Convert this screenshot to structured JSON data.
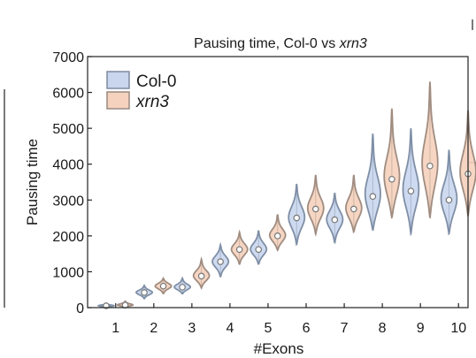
{
  "chart_data": {
    "type": "violin",
    "title": "Pausing time, Col-0 vs ",
    "title_italic": "xrn3",
    "xlabel": "#Exons",
    "ylabel": "Pausing time",
    "ylim": [
      0,
      7000
    ],
    "yticks": [
      0,
      1000,
      2000,
      3000,
      4000,
      5000,
      6000,
      7000
    ],
    "ytick_labels": [
      "0",
      "1000",
      "2000",
      "3000",
      "4000",
      "5000",
      "6000",
      "7000"
    ],
    "categories": [
      "1",
      "2",
      "3",
      "4",
      "5",
      "6",
      "7",
      "8",
      "9",
      "10"
    ],
    "legend_position": "top-left",
    "series": [
      {
        "name": "Col-0",
        "fill": "#c9d6ee",
        "edge": "#7f8fa6",
        "violins": [
          {
            "min": 10,
            "max": 120,
            "median": 50
          },
          {
            "min": 250,
            "max": 620,
            "median": 420
          },
          {
            "min": 380,
            "max": 820,
            "median": 570
          },
          {
            "min": 850,
            "max": 1750,
            "median": 1280
          },
          {
            "min": 1200,
            "max": 2150,
            "median": 1620
          },
          {
            "min": 1750,
            "max": 3450,
            "median": 2500
          },
          {
            "min": 1800,
            "max": 3200,
            "median": 2450
          },
          {
            "min": 2150,
            "max": 4850,
            "median": 3100
          },
          {
            "min": 2050,
            "max": 5000,
            "median": 3250
          },
          {
            "min": 2050,
            "max": 4400,
            "median": 3000
          }
        ]
      },
      {
        "name": "xrn3",
        "fill": "#f5d2bd",
        "edge": "#a08c80",
        "violins": [
          {
            "min": 10,
            "max": 180,
            "median": 70
          },
          {
            "min": 380,
            "max": 820,
            "median": 600
          },
          {
            "min": 550,
            "max": 1350,
            "median": 880
          },
          {
            "min": 1200,
            "max": 2100,
            "median": 1620
          },
          {
            "min": 1600,
            "max": 2600,
            "median": 2000
          },
          {
            "min": 2050,
            "max": 3700,
            "median": 2750
          },
          {
            "min": 2100,
            "max": 3700,
            "median": 2750
          },
          {
            "min": 2500,
            "max": 5550,
            "median": 3580
          },
          {
            "min": 2500,
            "max": 6300,
            "median": 3950
          },
          {
            "min": 2550,
            "max": 5500,
            "median": 3730
          }
        ]
      }
    ]
  }
}
